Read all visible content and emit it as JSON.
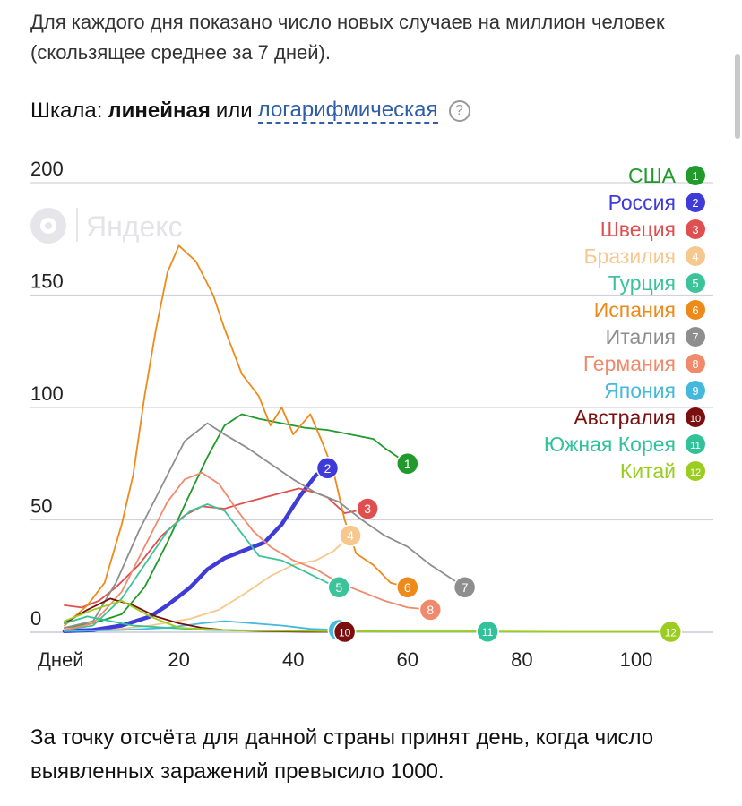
{
  "intro_text": "Для каждого дня показано число новых случаев на миллион человек (скользящее среднее за 7 дней).",
  "scale": {
    "label": "Шкала:",
    "linear": "линейная",
    "or": "или",
    "log": "логарифмическая",
    "help": "?"
  },
  "watermark": "Яндекс",
  "footer_text": "За точку отсчёта для данной страны принят день, когда число выявленных заражений превысило 1000.",
  "chart_data": {
    "type": "line",
    "xlabel": "Дней",
    "ylabel": "",
    "xlim": [
      0,
      112
    ],
    "ylim": [
      0,
      200
    ],
    "x_ticks": [
      20,
      40,
      60,
      80,
      100
    ],
    "y_ticks": [
      0,
      50,
      100,
      150,
      200
    ],
    "grid": true,
    "legend": "top-right",
    "series": [
      {
        "name": "США",
        "num": "1",
        "color": "#1f9a2b",
        "points": [
          [
            0,
            2
          ],
          [
            5,
            4
          ],
          [
            10,
            8
          ],
          [
            14,
            20
          ],
          [
            18,
            40
          ],
          [
            22,
            62
          ],
          [
            25,
            78
          ],
          [
            28,
            92
          ],
          [
            31,
            97
          ],
          [
            34,
            95
          ],
          [
            38,
            93
          ],
          [
            42,
            91
          ],
          [
            46,
            90
          ],
          [
            50,
            88
          ],
          [
            54,
            86
          ],
          [
            56,
            82
          ],
          [
            60,
            75
          ]
        ]
      },
      {
        "name": "Россия",
        "num": "2",
        "color": "#3f3bd9",
        "width": 4.5,
        "points": [
          [
            0,
            0.5
          ],
          [
            5,
            1
          ],
          [
            10,
            3
          ],
          [
            15,
            7
          ],
          [
            18,
            12
          ],
          [
            22,
            20
          ],
          [
            25,
            28
          ],
          [
            28,
            33
          ],
          [
            31,
            36
          ],
          [
            35,
            40
          ],
          [
            38,
            48
          ],
          [
            41,
            60
          ],
          [
            44,
            70
          ],
          [
            46,
            73
          ]
        ]
      },
      {
        "name": "Швеция",
        "num": "3",
        "color": "#e04f4f",
        "points": [
          [
            0,
            12
          ],
          [
            3,
            11
          ],
          [
            6,
            14
          ],
          [
            9,
            20
          ],
          [
            13,
            30
          ],
          [
            17,
            43
          ],
          [
            21,
            52
          ],
          [
            24,
            56
          ],
          [
            28,
            55
          ],
          [
            32,
            58
          ],
          [
            35,
            60
          ],
          [
            38,
            62
          ],
          [
            41,
            64
          ],
          [
            44,
            62
          ],
          [
            46,
            60
          ],
          [
            49,
            53
          ],
          [
            53,
            55
          ]
        ]
      },
      {
        "name": "Бразилия",
        "num": "4",
        "color": "#f6c88e",
        "points": [
          [
            0,
            0.5
          ],
          [
            8,
            1
          ],
          [
            15,
            3
          ],
          [
            22,
            6
          ],
          [
            27,
            10
          ],
          [
            32,
            18
          ],
          [
            36,
            25
          ],
          [
            40,
            30
          ],
          [
            44,
            32
          ],
          [
            47,
            36
          ],
          [
            50,
            43
          ]
        ]
      },
      {
        "name": "Турция",
        "num": "5",
        "color": "#3cc39a",
        "points": [
          [
            0,
            1
          ],
          [
            5,
            3
          ],
          [
            10,
            15
          ],
          [
            14,
            30
          ],
          [
            18,
            45
          ],
          [
            22,
            54
          ],
          [
            25,
            57
          ],
          [
            28,
            54
          ],
          [
            31,
            44
          ],
          [
            34,
            34
          ],
          [
            38,
            32
          ],
          [
            42,
            27
          ],
          [
            46,
            22
          ],
          [
            48,
            20
          ]
        ]
      },
      {
        "name": "Испания",
        "num": "6",
        "color": "#ee8a1a",
        "points": [
          [
            0,
            3
          ],
          [
            4,
            12
          ],
          [
            7,
            22
          ],
          [
            10,
            48
          ],
          [
            12,
            70
          ],
          [
            14,
            105
          ],
          [
            16,
            135
          ],
          [
            18,
            160
          ],
          [
            20,
            172
          ],
          [
            23,
            165
          ],
          [
            26,
            150
          ],
          [
            28,
            135
          ],
          [
            31,
            115
          ],
          [
            34,
            105
          ],
          [
            36,
            92
          ],
          [
            38,
            100
          ],
          [
            40,
            88
          ],
          [
            43,
            97
          ],
          [
            45,
            85
          ],
          [
            47,
            72
          ],
          [
            49,
            50
          ],
          [
            51,
            35
          ],
          [
            54,
            30
          ],
          [
            57,
            22
          ],
          [
            60,
            20
          ]
        ]
      },
      {
        "name": "Италия",
        "num": "7",
        "color": "#8e8e8e",
        "points": [
          [
            0,
            2
          ],
          [
            5,
            5
          ],
          [
            9,
            22
          ],
          [
            13,
            45
          ],
          [
            17,
            65
          ],
          [
            21,
            85
          ],
          [
            25,
            93
          ],
          [
            28,
            88
          ],
          [
            32,
            82
          ],
          [
            36,
            75
          ],
          [
            40,
            68
          ],
          [
            44,
            62
          ],
          [
            48,
            58
          ],
          [
            52,
            50
          ],
          [
            56,
            43
          ],
          [
            60,
            38
          ],
          [
            64,
            30
          ],
          [
            67,
            25
          ],
          [
            70,
            20
          ]
        ]
      },
      {
        "name": "Германия",
        "num": "8",
        "color": "#f08a6c",
        "points": [
          [
            0,
            1
          ],
          [
            5,
            4
          ],
          [
            10,
            18
          ],
          [
            14,
            38
          ],
          [
            18,
            58
          ],
          [
            21,
            68
          ],
          [
            24,
            71
          ],
          [
            27,
            66
          ],
          [
            30,
            55
          ],
          [
            33,
            45
          ],
          [
            36,
            38
          ],
          [
            40,
            32
          ],
          [
            44,
            28
          ],
          [
            48,
            22
          ],
          [
            52,
            18
          ],
          [
            56,
            14
          ],
          [
            60,
            11
          ],
          [
            64,
            10
          ]
        ]
      },
      {
        "name": "Япония",
        "num": "9",
        "color": "#46b8dc",
        "points": [
          [
            0,
            0.5
          ],
          [
            10,
            1
          ],
          [
            18,
            2
          ],
          [
            24,
            4
          ],
          [
            28,
            5
          ],
          [
            33,
            4
          ],
          [
            38,
            3
          ],
          [
            43,
            1.5
          ],
          [
            48,
            1
          ]
        ]
      },
      {
        "name": "Австралия",
        "num": "10",
        "color": "#7b0f0f",
        "points": [
          [
            0,
            4
          ],
          [
            4,
            10
          ],
          [
            8,
            15
          ],
          [
            12,
            12
          ],
          [
            16,
            7
          ],
          [
            20,
            4
          ],
          [
            24,
            2
          ],
          [
            28,
            1
          ],
          [
            35,
            0.5
          ],
          [
            42,
            0.2
          ],
          [
            49,
            0.2
          ]
        ]
      },
      {
        "name": "Южная Корея",
        "num": "11",
        "color": "#31c29a",
        "points": [
          [
            0,
            4
          ],
          [
            4,
            7
          ],
          [
            8,
            5
          ],
          [
            12,
            3
          ],
          [
            18,
            2
          ],
          [
            25,
            1
          ],
          [
            35,
            0.8
          ],
          [
            45,
            0.5
          ],
          [
            55,
            0.3
          ],
          [
            65,
            0.3
          ],
          [
            74,
            0.3
          ]
        ]
      },
      {
        "name": "Китай",
        "num": "12",
        "color": "#9acd1f",
        "points": [
          [
            0,
            5
          ],
          [
            5,
            10
          ],
          [
            10,
            14
          ],
          [
            15,
            7
          ],
          [
            20,
            2
          ],
          [
            30,
            0.8
          ],
          [
            45,
            0.5
          ],
          [
            60,
            0.3
          ],
          [
            75,
            0.3
          ],
          [
            90,
            0.2
          ],
          [
            106,
            0.2
          ]
        ]
      }
    ]
  }
}
